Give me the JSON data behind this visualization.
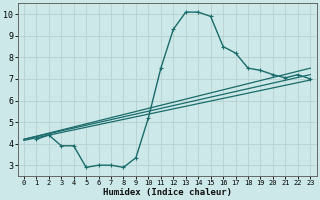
{
  "xlabel": "Humidex (Indice chaleur)",
  "xlim": [
    -0.5,
    23.5
  ],
  "ylim": [
    2.5,
    10.5
  ],
  "xticks": [
    0,
    1,
    2,
    3,
    4,
    5,
    6,
    7,
    8,
    9,
    10,
    11,
    12,
    13,
    14,
    15,
    16,
    17,
    18,
    19,
    20,
    21,
    22,
    23
  ],
  "yticks": [
    3,
    4,
    5,
    6,
    7,
    8,
    9,
    10
  ],
  "background_color": "#cce8e8",
  "grid_color": "#c0d8d8",
  "line_color": "#1a6b6b",
  "main_line": {
    "x": [
      1,
      2,
      3,
      4,
      5,
      6,
      7,
      8,
      9,
      10,
      11,
      12,
      13,
      14,
      15,
      16,
      17,
      18,
      19,
      20,
      21,
      22,
      23
    ],
    "y": [
      4.2,
      4.4,
      3.9,
      3.9,
      2.9,
      3.0,
      3.0,
      2.9,
      3.35,
      5.2,
      7.5,
      9.3,
      10.1,
      10.1,
      9.9,
      8.5,
      8.2,
      7.5,
      7.4,
      7.2,
      7.05,
      7.2,
      7.0
    ]
  },
  "straight_lines": [
    {
      "x": [
        0,
        23
      ],
      "y": [
        4.2,
        7.5
      ]
    },
    {
      "x": [
        0,
        23
      ],
      "y": [
        4.2,
        7.2
      ]
    },
    {
      "x": [
        0,
        23
      ],
      "y": [
        4.15,
        6.95
      ]
    }
  ]
}
